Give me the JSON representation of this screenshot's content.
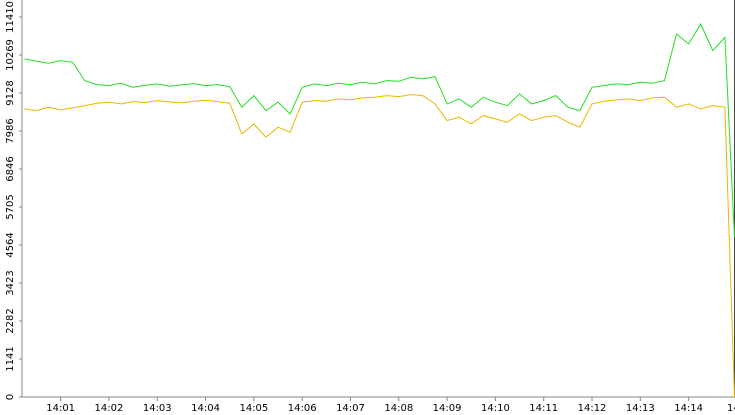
{
  "chart_data": {
    "type": "line",
    "x": [
      0.25,
      0.5,
      0.75,
      1,
      1.25,
      1.5,
      1.75,
      2,
      2.25,
      2.5,
      2.75,
      3,
      3.25,
      3.5,
      3.75,
      4,
      4.25,
      4.5,
      4.75,
      5,
      5.25,
      5.5,
      5.75,
      6,
      6.25,
      6.5,
      6.75,
      7,
      7.25,
      7.5,
      7.75,
      8,
      8.25,
      8.5,
      8.75,
      9,
      9.25,
      9.5,
      9.75,
      10,
      10.25,
      10.5,
      10.75,
      11,
      11.25,
      11.5,
      11.75,
      12,
      12.25,
      12.5,
      12.75,
      13,
      13.25,
      13.5,
      13.75,
      14,
      14.25,
      14.5,
      14.75,
      14.95
    ],
    "series": [
      {
        "color": "#22dd22",
        "values": [
          10150,
          10080,
          10020,
          10100,
          10050,
          9500,
          9380,
          9350,
          9420,
          9300,
          9360,
          9400,
          9330,
          9370,
          9410,
          9350,
          9380,
          9320,
          8700,
          9050,
          8600,
          8850,
          8500,
          9300,
          9400,
          9350,
          9420,
          9380,
          9450,
          9400,
          9500,
          9480,
          9600,
          9550,
          9620,
          8800,
          8950,
          8700,
          9000,
          8850,
          8750,
          9100,
          8800,
          8900,
          9050,
          8700,
          8600,
          9300,
          9350,
          9400,
          9380,
          9450,
          9420,
          9500,
          10900,
          10600,
          11200,
          10400,
          10800,
          4800
        ]
      },
      {
        "color": "#e8b800",
        "values": [
          8650,
          8600,
          8700,
          8620,
          8680,
          8750,
          8820,
          8850,
          8800,
          8870,
          8840,
          8900,
          8860,
          8830,
          8880,
          8910,
          8870,
          8820,
          7900,
          8200,
          7800,
          8100,
          7950,
          8850,
          8900,
          8880,
          8950,
          8920,
          8980,
          9000,
          9050,
          9020,
          9080,
          9050,
          8800,
          8300,
          8400,
          8200,
          8450,
          8350,
          8250,
          8500,
          8300,
          8400,
          8450,
          8250,
          8100,
          8800,
          8880,
          8920,
          8950,
          8900,
          8980,
          9000,
          8700,
          8800,
          8650,
          8750,
          8700,
          0
        ]
      }
    ],
    "xlim": [
      0.2,
      14.96
    ],
    "xticks": [
      {
        "value": 1,
        "label": "14:01"
      },
      {
        "value": 2,
        "label": "14:02"
      },
      {
        "value": 3,
        "label": "14:03"
      },
      {
        "value": 4,
        "label": "14:04"
      },
      {
        "value": 5,
        "label": "14:05"
      },
      {
        "value": 6,
        "label": "14:06"
      },
      {
        "value": 7,
        "label": "14:07"
      },
      {
        "value": 8,
        "label": "14:08"
      },
      {
        "value": 9,
        "label": "14:09"
      },
      {
        "value": 10,
        "label": "14:10"
      },
      {
        "value": 11,
        "label": "14:11"
      },
      {
        "value": 12,
        "label": "14:12"
      },
      {
        "value": 13,
        "label": "14:13"
      },
      {
        "value": 14,
        "label": "14:14"
      },
      {
        "value": 15,
        "label": "14"
      }
    ],
    "ylim": [
      0,
      11920
    ],
    "yticks": [
      0,
      1141,
      2282,
      3423,
      4564,
      5705,
      6846,
      7986,
      9128,
      10269,
      11410
    ]
  }
}
